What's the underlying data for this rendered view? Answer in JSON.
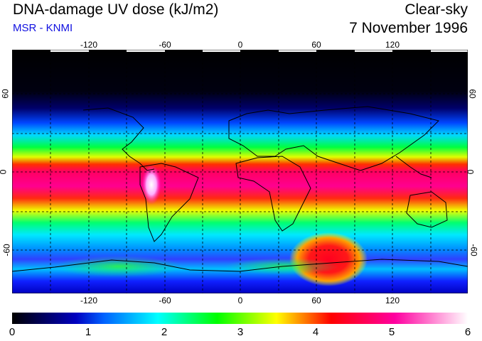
{
  "header": {
    "title": "DNA-damage UV dose (kJ/m2)",
    "subtitle": "MSR - KNMI",
    "sky_condition": "Clear-sky",
    "date": "7 November 1996"
  },
  "map": {
    "lon_ticks": [
      "-120",
      "-60",
      "0",
      "60",
      "120"
    ],
    "lat_ticks": [
      "60",
      "0",
      "-60"
    ],
    "projection": "equirectangular",
    "lon_range": [
      -180,
      180
    ],
    "lat_range": [
      -90,
      90
    ],
    "gridlines": "dashed",
    "coastlines": true,
    "hotspots": [
      {
        "region": "Andes (South America)",
        "level": "white (~5.5-6)"
      },
      {
        "region": "Southern ocean south of Africa",
        "level": "magenta-red (~4.5-5)"
      }
    ]
  },
  "colorbar": {
    "ticks": [
      "0",
      "1",
      "2",
      "3",
      "4",
      "5",
      "6"
    ],
    "range": [
      0,
      6
    ],
    "colors": [
      "#000000",
      "#0000c0",
      "#0060ff",
      "#00ffff",
      "#00ff00",
      "#ffff00",
      "#ff0000",
      "#ff00a0",
      "#ffffff"
    ]
  }
}
